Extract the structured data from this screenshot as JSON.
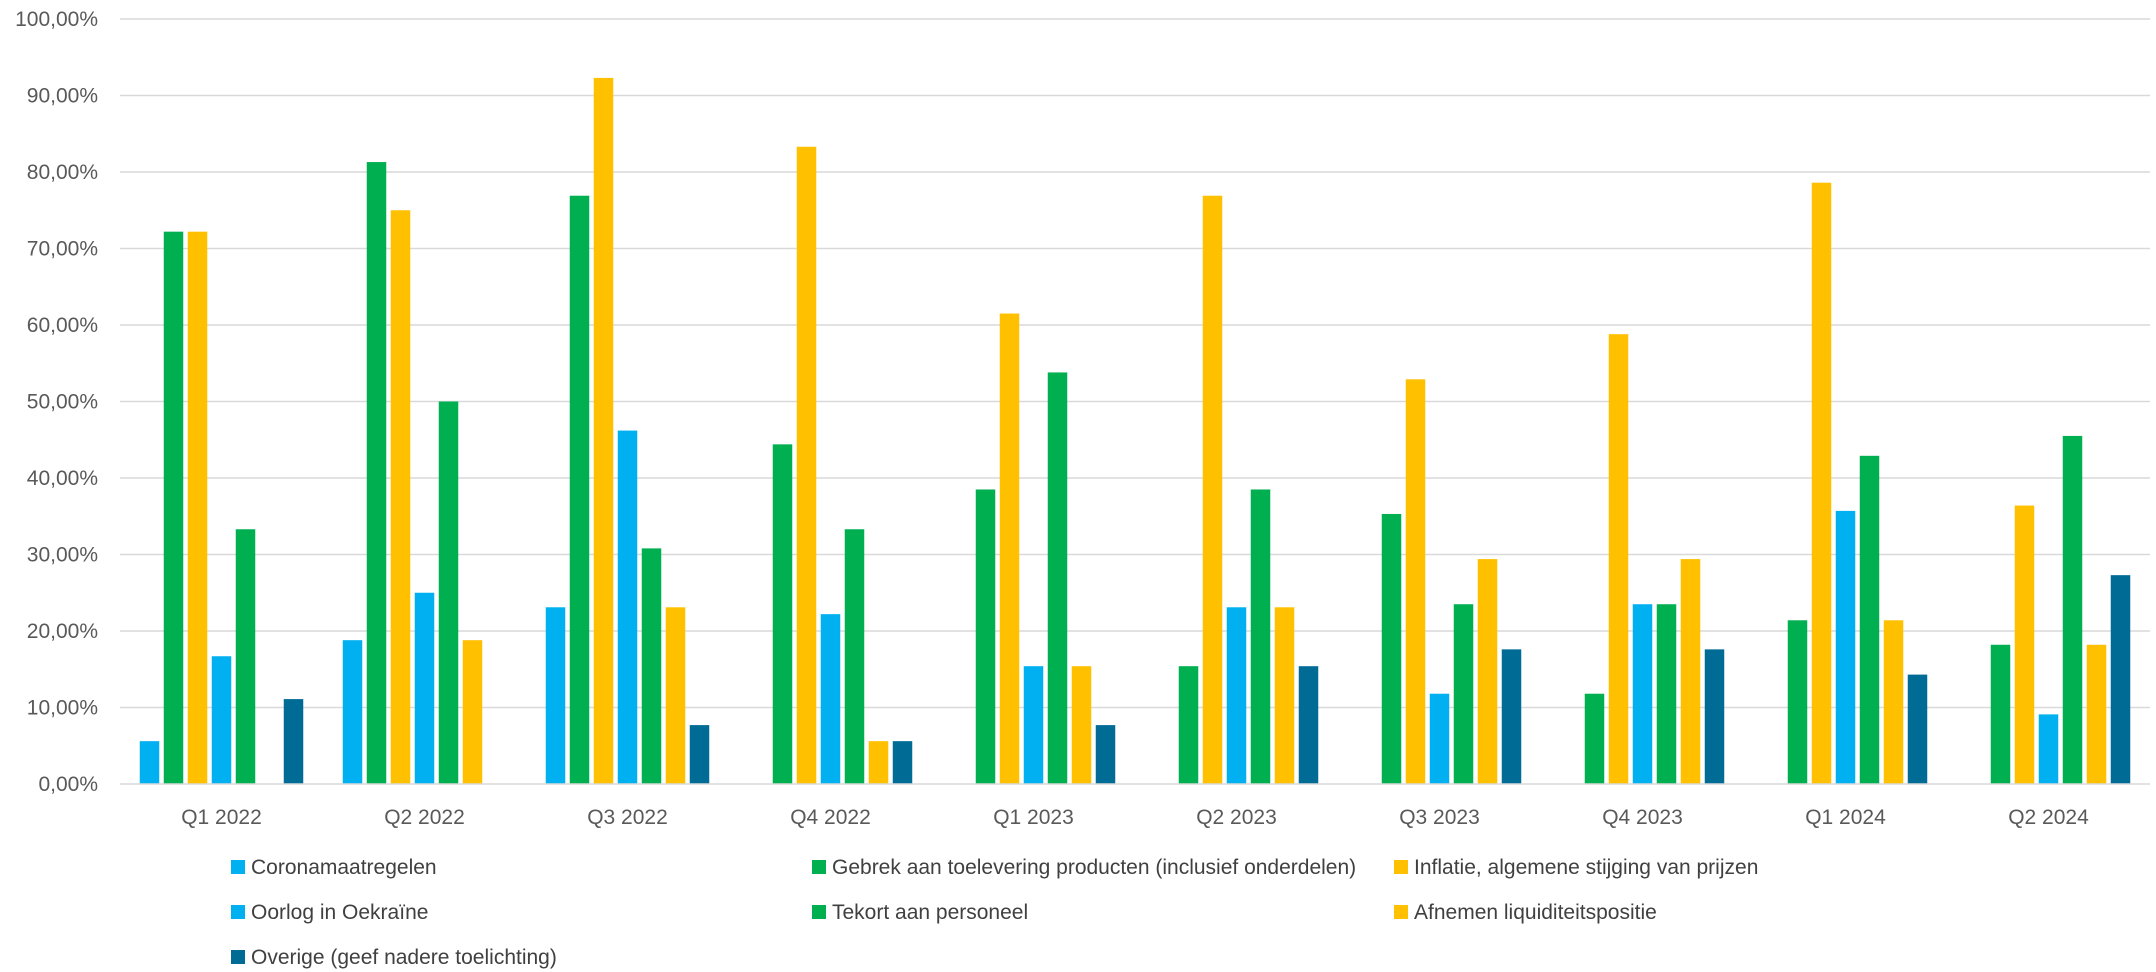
{
  "chart_data": {
    "type": "bar",
    "title": "",
    "xlabel": "",
    "ylabel": "",
    "ylim": [
      0,
      100
    ],
    "y_ticks": [
      "0,00%",
      "10,00%",
      "20,00%",
      "30,00%",
      "40,00%",
      "50,00%",
      "60,00%",
      "70,00%",
      "80,00%",
      "90,00%",
      "100,00%"
    ],
    "grid": true,
    "legend_position": "bottom",
    "categories": [
      "Q1 2022",
      "Q2 2022",
      "Q3 2022",
      "Q4 2022",
      "Q1 2023",
      "Q2 2023",
      "Q3 2023",
      "Q4 2023",
      "Q1 2024",
      "Q2 2024"
    ],
    "series": [
      {
        "name": "Coronamaatregelen",
        "color": "#00B0F0",
        "values": [
          5.6,
          18.8,
          23.1,
          0,
          0,
          0,
          0,
          0,
          0,
          0
        ]
      },
      {
        "name": "Gebrek aan toelevering producten (inclusief onderdelen)",
        "color": "#00B050",
        "values": [
          72.2,
          81.3,
          76.9,
          44.4,
          38.5,
          15.4,
          35.3,
          11.8,
          21.4,
          18.2
        ]
      },
      {
        "name": "Inflatie, algemene stijging van prijzen",
        "color": "#FFC000",
        "values": [
          72.2,
          75.0,
          92.3,
          83.3,
          61.5,
          76.9,
          52.9,
          58.8,
          78.6,
          36.4
        ]
      },
      {
        "name": "Oorlog in Oekraïne",
        "color": "#00B0F0",
        "values": [
          16.7,
          25.0,
          46.2,
          22.2,
          15.4,
          23.1,
          11.8,
          23.5,
          35.7,
          9.1
        ]
      },
      {
        "name": "Tekort aan personeel",
        "color": "#00B050",
        "values": [
          33.3,
          50.0,
          30.8,
          33.3,
          53.8,
          38.5,
          23.5,
          23.5,
          42.9,
          45.5
        ]
      },
      {
        "name": "Afnemen liquiditeitspositie",
        "color": "#FFC000",
        "values": [
          0,
          18.8,
          23.1,
          5.6,
          15.4,
          23.1,
          29.4,
          29.4,
          21.4,
          18.2
        ]
      },
      {
        "name": "Overige (geef nadere toelichting)",
        "color": "#006C96",
        "values": [
          11.1,
          0,
          7.7,
          5.6,
          7.7,
          15.4,
          17.6,
          17.6,
          14.3,
          27.3
        ]
      }
    ]
  }
}
